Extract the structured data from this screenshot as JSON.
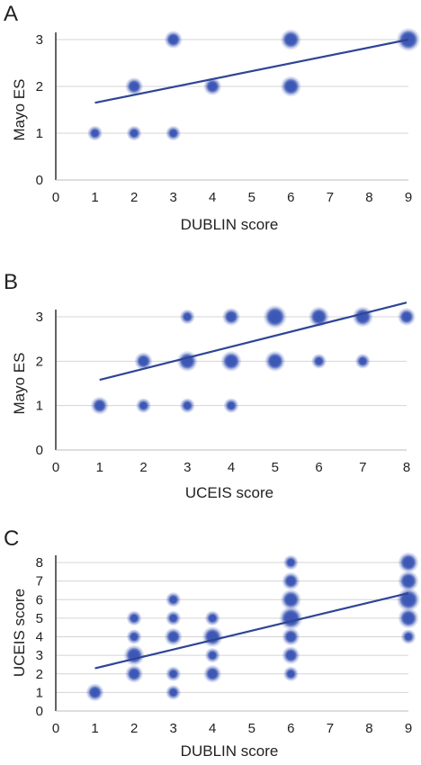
{
  "panels": [
    {
      "letter": "A",
      "chart_data": {
        "type": "scatter",
        "title": "",
        "xlabel": "DUBLIN score",
        "ylabel": "Mayo ES",
        "xlim": [
          0,
          9
        ],
        "ylim": [
          0,
          3
        ],
        "xticks": [
          0,
          1,
          2,
          3,
          4,
          5,
          6,
          7,
          8,
          9
        ],
        "yticks": [
          0,
          1,
          2,
          3
        ],
        "grid": true,
        "marker_color": "#3a55b4",
        "points": [
          {
            "x": 1,
            "y": 1,
            "n": 1
          },
          {
            "x": 2,
            "y": 1,
            "n": 1
          },
          {
            "x": 3,
            "y": 1,
            "n": 1
          },
          {
            "x": 2,
            "y": 2,
            "n": 2
          },
          {
            "x": 4,
            "y": 2,
            "n": 2
          },
          {
            "x": 6,
            "y": 2,
            "n": 3
          },
          {
            "x": 3,
            "y": 3,
            "n": 2
          },
          {
            "x": 6,
            "y": 3,
            "n": 3
          },
          {
            "x": 9,
            "y": 3,
            "n": 4
          }
        ],
        "trendline": {
          "x1": 1,
          "y1": 1.65,
          "x2": 9,
          "y2": 3.0
        }
      }
    },
    {
      "letter": "B",
      "chart_data": {
        "type": "scatter",
        "title": "",
        "xlabel": "UCEIS score",
        "ylabel": "Mayo ES",
        "xlim": [
          0,
          8
        ],
        "ylim": [
          0,
          3
        ],
        "xticks": [
          0,
          1,
          2,
          3,
          4,
          5,
          6,
          7,
          8
        ],
        "yticks": [
          0,
          1,
          2,
          3
        ],
        "grid": true,
        "marker_color": "#3a55b4",
        "points": [
          {
            "x": 1,
            "y": 1,
            "n": 2
          },
          {
            "x": 2,
            "y": 1,
            "n": 1
          },
          {
            "x": 3,
            "y": 1,
            "n": 1
          },
          {
            "x": 4,
            "y": 1,
            "n": 1
          },
          {
            "x": 2,
            "y": 2,
            "n": 2
          },
          {
            "x": 3,
            "y": 2,
            "n": 3
          },
          {
            "x": 4,
            "y": 2,
            "n": 3
          },
          {
            "x": 5,
            "y": 2,
            "n": 3
          },
          {
            "x": 6,
            "y": 2,
            "n": 1
          },
          {
            "x": 7,
            "y": 2,
            "n": 1
          },
          {
            "x": 3,
            "y": 3,
            "n": 1
          },
          {
            "x": 4,
            "y": 3,
            "n": 2
          },
          {
            "x": 5,
            "y": 3,
            "n": 4
          },
          {
            "x": 6,
            "y": 3,
            "n": 3
          },
          {
            "x": 7,
            "y": 3,
            "n": 3
          },
          {
            "x": 8,
            "y": 3,
            "n": 2
          }
        ],
        "trendline": {
          "x1": 1,
          "y1": 1.58,
          "x2": 8,
          "y2": 3.32
        }
      }
    },
    {
      "letter": "C",
      "chart_data": {
        "type": "scatter",
        "title": "",
        "xlabel": "DUBLIN score",
        "ylabel": "UCEIS score",
        "xlim": [
          0,
          9
        ],
        "ylim": [
          0,
          8
        ],
        "xticks": [
          0,
          1,
          2,
          3,
          4,
          5,
          6,
          7,
          8,
          9
        ],
        "yticks": [
          0,
          1,
          2,
          3,
          4,
          5,
          6,
          7,
          8
        ],
        "grid": true,
        "marker_color": "#3a55b4",
        "points": [
          {
            "x": 1,
            "y": 1,
            "n": 2
          },
          {
            "x": 2,
            "y": 2,
            "n": 2
          },
          {
            "x": 2,
            "y": 3,
            "n": 3
          },
          {
            "x": 2,
            "y": 4,
            "n": 1
          },
          {
            "x": 2,
            "y": 5,
            "n": 1
          },
          {
            "x": 3,
            "y": 1,
            "n": 1
          },
          {
            "x": 3,
            "y": 2,
            "n": 1
          },
          {
            "x": 3,
            "y": 4,
            "n": 2
          },
          {
            "x": 3,
            "y": 5,
            "n": 1
          },
          {
            "x": 3,
            "y": 6,
            "n": 1
          },
          {
            "x": 4,
            "y": 2,
            "n": 2
          },
          {
            "x": 4,
            "y": 3,
            "n": 1
          },
          {
            "x": 4,
            "y": 4,
            "n": 3
          },
          {
            "x": 4,
            "y": 5,
            "n": 1
          },
          {
            "x": 6,
            "y": 2,
            "n": 1
          },
          {
            "x": 6,
            "y": 3,
            "n": 2
          },
          {
            "x": 6,
            "y": 4,
            "n": 2
          },
          {
            "x": 6,
            "y": 5,
            "n": 4
          },
          {
            "x": 6,
            "y": 6,
            "n": 3
          },
          {
            "x": 6,
            "y": 7,
            "n": 2
          },
          {
            "x": 6,
            "y": 8,
            "n": 1
          },
          {
            "x": 9,
            "y": 4,
            "n": 1
          },
          {
            "x": 9,
            "y": 5,
            "n": 3
          },
          {
            "x": 9,
            "y": 6,
            "n": 4
          },
          {
            "x": 9,
            "y": 7,
            "n": 3
          },
          {
            "x": 9,
            "y": 8,
            "n": 3
          }
        ],
        "trendline": {
          "x1": 1,
          "y1": 2.3,
          "x2": 9,
          "y2": 6.35
        }
      }
    }
  ]
}
